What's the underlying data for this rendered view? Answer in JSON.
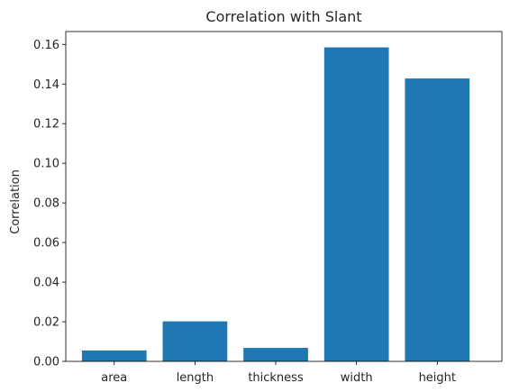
{
  "chart_data": {
    "type": "bar",
    "title": "Correlation with Slant",
    "xlabel": "",
    "ylabel": "Correlation",
    "categories": [
      "area",
      "length",
      "thickness",
      "width",
      "height"
    ],
    "values": [
      0.0055,
      0.0202,
      0.0068,
      0.1585,
      0.1428
    ],
    "ylim": [
      0,
      0.1665
    ],
    "yticks": [
      0.0,
      0.02,
      0.04,
      0.06,
      0.08,
      0.1,
      0.12,
      0.14,
      0.16
    ],
    "ytick_labels": [
      "0.00",
      "0.02",
      "0.04",
      "0.06",
      "0.08",
      "0.10",
      "0.12",
      "0.14",
      "0.16"
    ],
    "bar_color": "#1f77b4",
    "grid": false,
    "legend": false
  }
}
